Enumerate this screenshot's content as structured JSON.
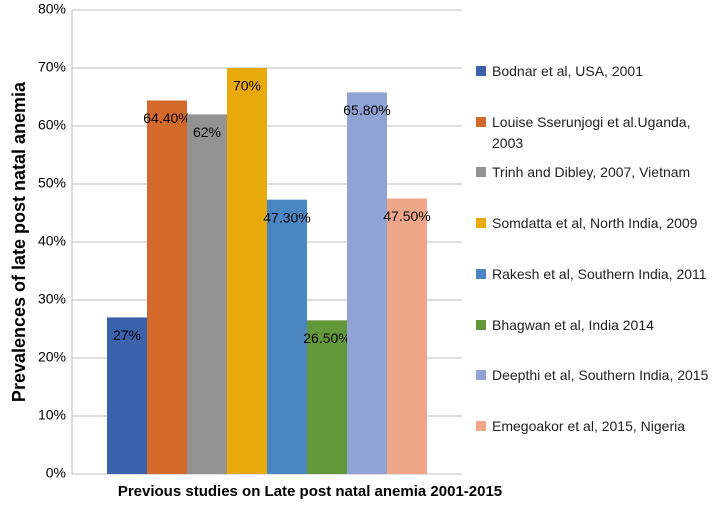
{
  "chart_data": {
    "type": "bar",
    "x_label": "Previous studies on Late post natal anemia 2001-2015",
    "y_label": "Prevalences of late post natal anemia",
    "categories": [
      null
    ],
    "series": [
      {
        "name": "Bodnar et al, USA, 2001",
        "color": "#3a62ad",
        "values": [
          27
        ],
        "value_labels": [
          "27%"
        ]
      },
      {
        "name": "Louise Sserunjogi et al.Uganda, 2003",
        "color": "#d3692a",
        "values": [
          64.4
        ],
        "value_labels": [
          "64.40%"
        ]
      },
      {
        "name": "Trinh and Dibley, 2007, Vietnam",
        "color": "#939393",
        "values": [
          62
        ],
        "value_labels": [
          "62%"
        ]
      },
      {
        "name": "Somdatta et al, North India, 2009",
        "color": "#e8aa0a",
        "values": [
          70
        ],
        "value_labels": [
          "70%"
        ]
      },
      {
        "name": "Rakesh et al, Southern India, 2011",
        "color": "#4a86c2",
        "values": [
          47.3
        ],
        "value_labels": [
          "47.30%"
        ]
      },
      {
        "name": "Bhagwan et al, India 2014",
        "color": "#63983a",
        "values": [
          26.5
        ],
        "value_labels": [
          "26.50%"
        ]
      },
      {
        "name": "Deepthi et al, Southern India, 2015",
        "color": "#8fa3d4",
        "values": [
          65.8
        ],
        "value_labels": [
          "65.80%"
        ]
      },
      {
        "name": "Emegoakor et al, 2015, Nigeria",
        "color": "#f0a689",
        "values": [
          47.5
        ],
        "value_labels": [
          "47.50%"
        ]
      }
    ],
    "ylim": [
      0,
      80
    ],
    "yticks": [
      {
        "value": 0,
        "label": "0%"
      },
      {
        "value": 10,
        "label": "10%"
      },
      {
        "value": 20,
        "label": "20%"
      },
      {
        "value": 30,
        "label": "30%"
      },
      {
        "value": 40,
        "label": "40%"
      },
      {
        "value": 50,
        "label": "50%"
      },
      {
        "value": 60,
        "label": "60%"
      },
      {
        "value": 70,
        "label": "70%"
      },
      {
        "value": 80,
        "label": "80%"
      }
    ],
    "grid": true
  }
}
